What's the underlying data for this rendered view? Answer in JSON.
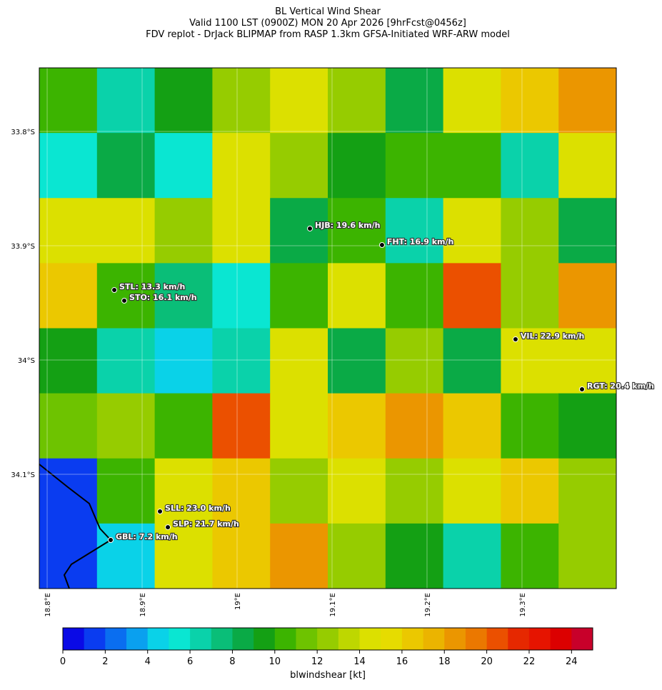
{
  "map": {
    "title": [
      "BL Vertical Wind Shear",
      "Valid 1100 LST (0900Z) MON 20 Apr 2026 [9hrFcst@0456z]",
      "FDV replot - DrJack BLIPMAP from RASP 1.3km GFSA-Initiated WRF-ARW model"
    ],
    "xlim": [
      18.7917,
      19.3993
    ],
    "ylim": [
      -34.2,
      -33.7444
    ],
    "xticks": [
      {
        "value": 18.8,
        "label": "18.8°E"
      },
      {
        "value": 18.9,
        "label": "18.9°E"
      },
      {
        "value": 19.0,
        "label": "19°E"
      },
      {
        "value": 19.1,
        "label": "19.1°E"
      },
      {
        "value": 19.2,
        "label": "19.2°E"
      },
      {
        "value": 19.3,
        "label": "19.3°E"
      }
    ],
    "yticks": [
      {
        "value": -33.8,
        "label": "33.8°S"
      },
      {
        "value": -33.9,
        "label": "33.9°S"
      },
      {
        "value": -34.0,
        "label": "34°S"
      },
      {
        "value": -34.1,
        "label": "34.1°S"
      }
    ],
    "field": [
      [
        10,
        6,
        9,
        12,
        14,
        12,
        8,
        14,
        16,
        18
      ],
      [
        5,
        8,
        5,
        14,
        12,
        9,
        10,
        10,
        6,
        14
      ],
      [
        14,
        14,
        12,
        14,
        8,
        10,
        6,
        14,
        12,
        8
      ],
      [
        16,
        10,
        7,
        5,
        10,
        14,
        10,
        20,
        12,
        18
      ],
      [
        9,
        6,
        4,
        6,
        14,
        8,
        12,
        8,
        14,
        14
      ],
      [
        11,
        12,
        10,
        20,
        14,
        16,
        18,
        16,
        10,
        9
      ],
      [
        1,
        10,
        14,
        16,
        12,
        14,
        12,
        14,
        16,
        12
      ],
      [
        1,
        4,
        14,
        16,
        18,
        12,
        9,
        6,
        10,
        12
      ]
    ],
    "stations": [
      {
        "label": "HJB: 19.6 km/h",
        "lon": 19.0767,
        "lat": -33.885
      },
      {
        "label": "FHT: 16.9 km/h",
        "lon": 19.1526,
        "lat": -33.8994
      },
      {
        "label": "STL: 13.3 km/h",
        "lon": 18.8707,
        "lat": -33.9388
      },
      {
        "label": "STO: 16.1 km/h",
        "lon": 18.8812,
        "lat": -33.9481
      },
      {
        "label": "VIL: 22.9 km/h",
        "lon": 19.2932,
        "lat": -33.9819
      },
      {
        "label": "RGT: 20.4 km/h",
        "lon": 19.3632,
        "lat": -34.0256
      },
      {
        "label": "SLL: 23.0 km/h",
        "lon": 18.9188,
        "lat": -34.1325
      },
      {
        "label": "SLP: 21.7 km/h",
        "lon": 18.9271,
        "lat": -34.1463
      },
      {
        "label": "GBL: 7.2 km/h",
        "lon": 18.8669,
        "lat": -34.1575
      }
    ]
  },
  "colorbar": {
    "label": "blwindshear [kt]",
    "xlim": [
      0,
      25
    ],
    "xticks": [
      0,
      2,
      4,
      6,
      8,
      10,
      12,
      14,
      16,
      18,
      20,
      22,
      24
    ],
    "colors": [
      "#0a0ae6",
      "#0a3cf0",
      "#0a6ef0",
      "#0aa0ef",
      "#0ad2e8",
      "#0ae6d2",
      "#0ad2aa",
      "#0abe78",
      "#0aaa46",
      "#14a014",
      "#3cb400",
      "#6ec300",
      "#96cc00",
      "#bed700",
      "#dce000",
      "#e6dc00",
      "#ebc800",
      "#ebb400",
      "#eb9600",
      "#eb7800",
      "#eb5000",
      "#e62800",
      "#e61400",
      "#dc0000",
      "#c8002a"
    ]
  }
}
